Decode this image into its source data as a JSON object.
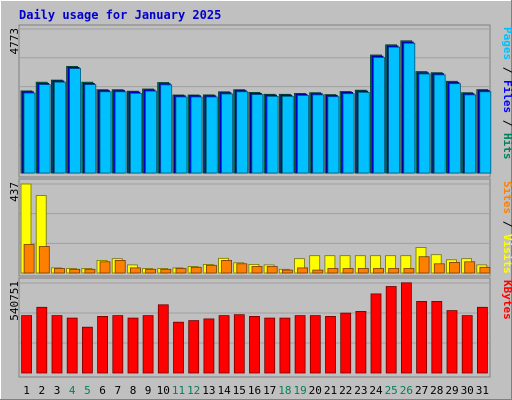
{
  "chart_data": [
    {
      "type": "bar",
      "title": "Daily usage for January 2025",
      "categories": [
        "1",
        "2",
        "3",
        "4",
        "5",
        "6",
        "7",
        "8",
        "9",
        "10",
        "11",
        "12",
        "13",
        "14",
        "15",
        "16",
        "17",
        "18",
        "19",
        "20",
        "21",
        "22",
        "23",
        "24",
        "25",
        "26",
        "27",
        "28",
        "29",
        "30",
        "31"
      ],
      "weekend_categories": [
        "4",
        "5",
        "11",
        "12",
        "18",
        "19",
        "25",
        "26"
      ],
      "ylabel_max": "4773",
      "ylim": [
        0,
        4773
      ],
      "right_label": {
        "parts": [
          "Pages",
          "Files",
          "Hits"
        ],
        "separator": " / "
      },
      "series": [
        {
          "name": "Hits",
          "color": "#00805c",
          "values": [
            2720,
            3010,
            3080,
            3535,
            3010,
            2760,
            2760,
            2710,
            2785,
            3000,
            2585,
            2585,
            2590,
            2690,
            2760,
            2670,
            2610,
            2610,
            2640,
            2660,
            2600,
            2700,
            2745,
            3910,
            4250,
            4382,
            3360,
            3325,
            3040,
            2660,
            2765
          ]
        },
        {
          "name": "Files",
          "color": "#0000ff",
          "values": [
            2690,
            2970,
            3050,
            3500,
            2970,
            2730,
            2730,
            2680,
            2750,
            2960,
            2560,
            2560,
            2560,
            2660,
            2730,
            2640,
            2580,
            2580,
            2610,
            2630,
            2570,
            2670,
            2710,
            3870,
            4210,
            4340,
            3320,
            3290,
            3000,
            2630,
            2730
          ]
        },
        {
          "name": "Pages",
          "color": "#00c0ff",
          "values": [
            2650,
            2930,
            3010,
            3460,
            2930,
            2690,
            2690,
            2640,
            2710,
            2920,
            2520,
            2520,
            2520,
            2620,
            2690,
            2600,
            2540,
            2540,
            2570,
            2590,
            2530,
            2630,
            2670,
            3830,
            4170,
            4300,
            3280,
            3250,
            2960,
            2590,
            2690
          ]
        }
      ]
    },
    {
      "type": "bar",
      "ylabel_max": "437",
      "ylim": [
        0,
        437
      ],
      "right_label": {
        "parts": [
          "Sites",
          "Visits"
        ],
        "separator": " / "
      },
      "series": [
        {
          "name": "Visits",
          "color": "#ffff00",
          "values": [
            437,
            380,
            25,
            22,
            22,
            62,
            70,
            40,
            22,
            22,
            25,
            32,
            42,
            72,
            50,
            42,
            40,
            18,
            70,
            85,
            85,
            85,
            85,
            85,
            85,
            85,
            125,
            90,
            65,
            70,
            40
          ]
        },
        {
          "name": "Sites",
          "color": "#ff8000",
          "values": [
            140,
            130,
            22,
            18,
            18,
            55,
            62,
            25,
            18,
            18,
            22,
            28,
            38,
            62,
            45,
            32,
            32,
            14,
            25,
            14,
            22,
            22,
            22,
            22,
            22,
            22,
            80,
            45,
            52,
            55,
            28
          ]
        }
      ]
    },
    {
      "type": "bar",
      "ylabel_max": "540751",
      "ylim": [
        0,
        540751
      ],
      "right_label": {
        "parts": [
          "KBytes"
        ],
        "separator": ""
      },
      "series": [
        {
          "name": "KBytes",
          "color": "#ff0000",
          "values": [
            345000,
            395000,
            345000,
            330000,
            275000,
            340000,
            345000,
            330000,
            345000,
            410000,
            305000,
            315000,
            325000,
            345000,
            350000,
            340000,
            330000,
            330000,
            345000,
            345000,
            340000,
            360000,
            370000,
            475000,
            520000,
            542000,
            430000,
            430000,
            375000,
            345000,
            395000
          ]
        }
      ]
    }
  ]
}
